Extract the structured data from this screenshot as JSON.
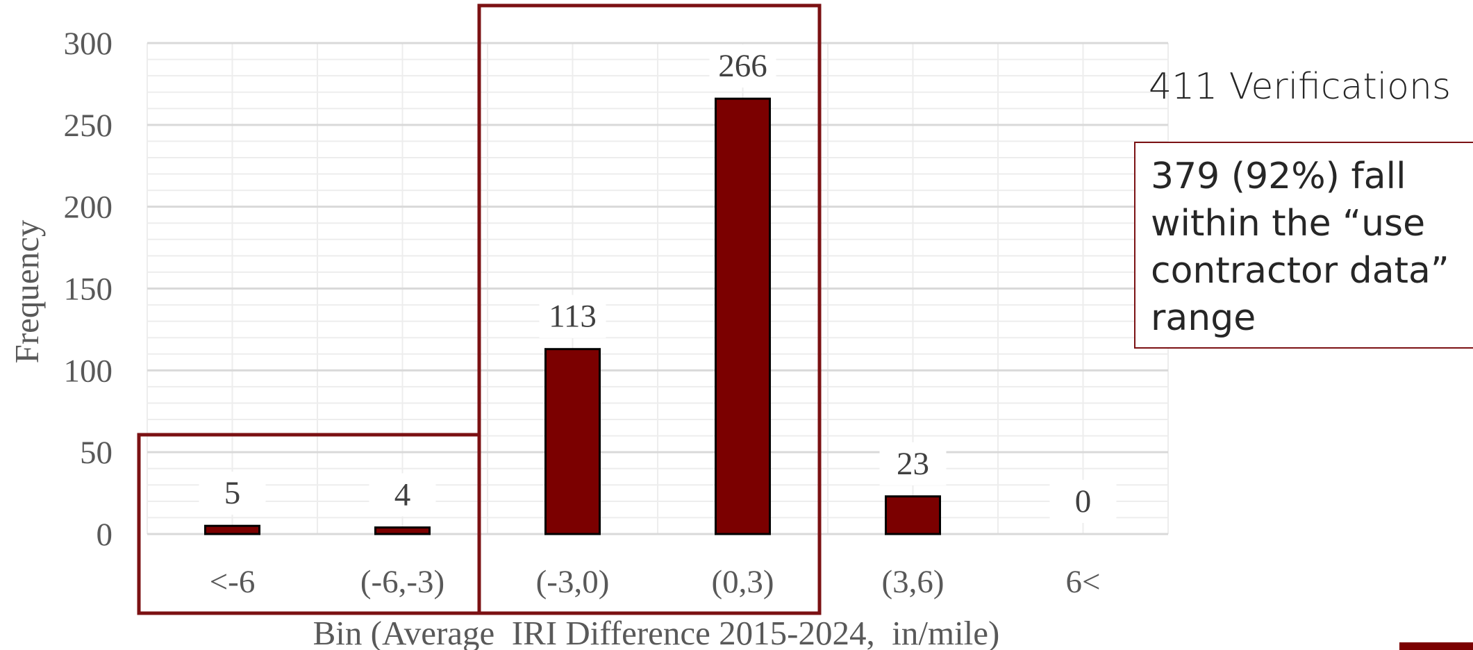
{
  "chart_data": {
    "type": "bar",
    "categories": [
      "<-6",
      "(-6,-3)",
      "(-3,0)",
      "(0,3)",
      "(3,6)",
      "6<"
    ],
    "values": [
      5,
      4,
      113,
      266,
      23,
      0
    ],
    "data_labels": [
      "5",
      "4",
      "113",
      "266",
      "23",
      "0"
    ],
    "xlabel": "Bin (Average  IRI Difference 2015-2024,  in/mile)",
    "ylabel": "Frequency",
    "ylim": [
      0,
      300
    ],
    "yticks": [
      "0",
      "50",
      "100",
      "150",
      "200",
      "250",
      "300"
    ],
    "grid": true,
    "bar_color": "#7b0000",
    "highlight_color": "#7b1113"
  },
  "annotations": {
    "title": "411 Verifications",
    "note_lines": [
      "379 (92%) fall",
      "within the “use",
      "contractor data”",
      "range"
    ]
  }
}
